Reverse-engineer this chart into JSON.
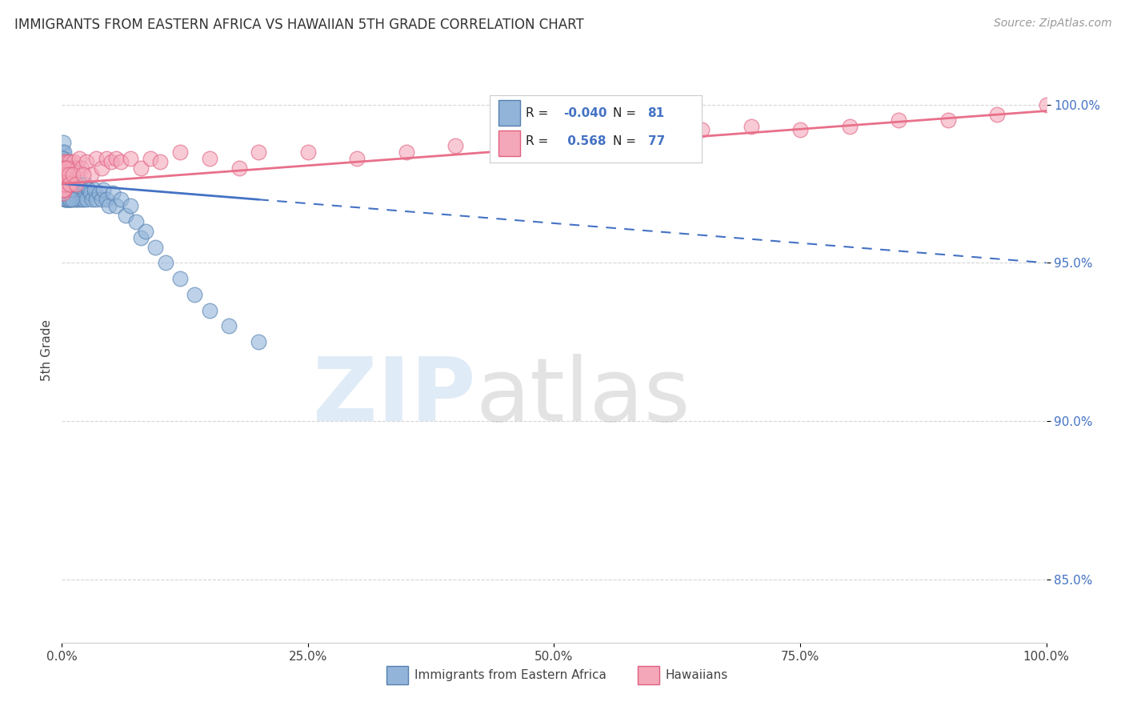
{
  "title": "IMMIGRANTS FROM EASTERN AFRICA VS HAWAIIAN 5TH GRADE CORRELATION CHART",
  "source": "Source: ZipAtlas.com",
  "ylabel": "5th Grade",
  "blue_R": -0.04,
  "blue_N": 81,
  "pink_R": 0.568,
  "pink_N": 77,
  "blue_color": "#92B4D9",
  "pink_color": "#F4A7B9",
  "blue_edge_color": "#5580B0",
  "pink_edge_color": "#E06080",
  "blue_line_color": "#4472C4",
  "pink_line_color": "#E8708A",
  "background_color": "#FFFFFF",
  "grid_color": "#CCCCCC",
  "legend_label_blue": "Immigrants from Eastern Africa",
  "legend_label_pink": "Hawaiians",
  "blue_x": [
    0.05,
    0.08,
    0.1,
    0.12,
    0.15,
    0.18,
    0.2,
    0.22,
    0.25,
    0.28,
    0.3,
    0.32,
    0.35,
    0.38,
    0.4,
    0.42,
    0.45,
    0.48,
    0.5,
    0.52,
    0.55,
    0.58,
    0.6,
    0.65,
    0.7,
    0.75,
    0.8,
    0.85,
    0.9,
    0.95,
    1.0,
    1.1,
    1.2,
    1.3,
    1.4,
    1.5,
    1.6,
    1.7,
    1.8,
    1.9,
    2.0,
    2.1,
    2.2,
    2.3,
    2.5,
    2.7,
    2.9,
    3.1,
    3.3,
    3.5,
    3.8,
    4.0,
    4.2,
    4.5,
    4.8,
    5.2,
    5.5,
    6.0,
    6.5,
    7.0,
    7.5,
    8.0,
    8.5,
    9.5,
    10.5,
    12.0,
    13.5,
    15.0,
    17.0,
    20.0,
    0.06,
    0.09,
    0.14,
    0.24,
    0.36,
    0.44,
    0.56,
    0.68,
    0.78,
    0.88,
    1.05
  ],
  "blue_y": [
    98.5,
    98.2,
    98.8,
    97.8,
    98.0,
    97.5,
    98.3,
    97.2,
    98.5,
    97.0,
    97.8,
    97.5,
    98.0,
    97.3,
    97.8,
    97.0,
    97.5,
    97.2,
    97.8,
    97.0,
    97.5,
    97.2,
    97.0,
    97.3,
    97.5,
    97.0,
    97.3,
    97.5,
    97.0,
    97.2,
    97.3,
    97.0,
    97.2,
    97.5,
    97.0,
    97.3,
    97.0,
    97.2,
    97.5,
    97.0,
    97.2,
    97.3,
    97.0,
    97.5,
    97.0,
    97.3,
    97.2,
    97.0,
    97.3,
    97.0,
    97.2,
    97.0,
    97.3,
    97.0,
    96.8,
    97.2,
    96.8,
    97.0,
    96.5,
    96.8,
    96.3,
    95.8,
    96.0,
    95.5,
    95.0,
    94.5,
    94.0,
    93.5,
    93.0,
    92.5,
    98.3,
    98.0,
    97.8,
    97.5,
    97.3,
    97.0,
    97.5,
    97.2,
    97.0,
    97.3,
    97.0
  ],
  "pink_x": [
    0.05,
    0.08,
    0.1,
    0.12,
    0.15,
    0.18,
    0.2,
    0.22,
    0.25,
    0.28,
    0.3,
    0.32,
    0.35,
    0.38,
    0.4,
    0.42,
    0.45,
    0.48,
    0.5,
    0.52,
    0.55,
    0.58,
    0.6,
    0.65,
    0.7,
    0.75,
    0.8,
    0.85,
    0.9,
    1.0,
    1.2,
    1.5,
    1.8,
    2.0,
    2.5,
    3.0,
    3.5,
    4.0,
    4.5,
    5.0,
    5.5,
    6.0,
    7.0,
    8.0,
    9.0,
    10.0,
    12.0,
    15.0,
    18.0,
    20.0,
    25.0,
    30.0,
    35.0,
    40.0,
    45.0,
    50.0,
    55.0,
    60.0,
    65.0,
    70.0,
    75.0,
    80.0,
    85.0,
    90.0,
    95.0,
    100.0,
    0.06,
    0.11,
    0.16,
    0.23,
    0.34,
    0.44,
    0.68,
    0.78,
    1.1,
    1.4,
    2.2
  ],
  "pink_y": [
    97.5,
    97.8,
    97.2,
    97.5,
    97.8,
    97.3,
    98.0,
    97.5,
    98.2,
    97.3,
    97.8,
    97.5,
    97.8,
    98.0,
    97.5,
    97.8,
    98.0,
    97.5,
    97.8,
    98.2,
    97.5,
    97.8,
    98.0,
    97.8,
    98.0,
    97.8,
    98.2,
    97.5,
    98.0,
    98.0,
    98.2,
    98.0,
    98.3,
    98.0,
    98.2,
    97.8,
    98.3,
    98.0,
    98.3,
    98.2,
    98.3,
    98.2,
    98.3,
    98.0,
    98.3,
    98.2,
    98.5,
    98.3,
    98.0,
    98.5,
    98.5,
    98.3,
    98.5,
    98.7,
    98.8,
    98.5,
    98.8,
    99.0,
    99.2,
    99.3,
    99.2,
    99.3,
    99.5,
    99.5,
    99.7,
    100.0,
    97.8,
    97.5,
    97.3,
    98.0,
    97.8,
    98.0,
    97.8,
    97.5,
    97.8,
    97.5,
    97.8
  ],
  "xlim": [
    0,
    100
  ],
  "ylim": [
    83.0,
    101.5
  ],
  "yticks": [
    85.0,
    90.0,
    95.0,
    100.0
  ],
  "xticks": [
    0,
    25,
    50,
    75,
    100
  ],
  "blue_solid_end": 20.0,
  "blue_line_start_y": 97.5,
  "blue_line_end_y": 95.0,
  "pink_line_start_y": 97.5,
  "pink_line_end_y": 99.8
}
